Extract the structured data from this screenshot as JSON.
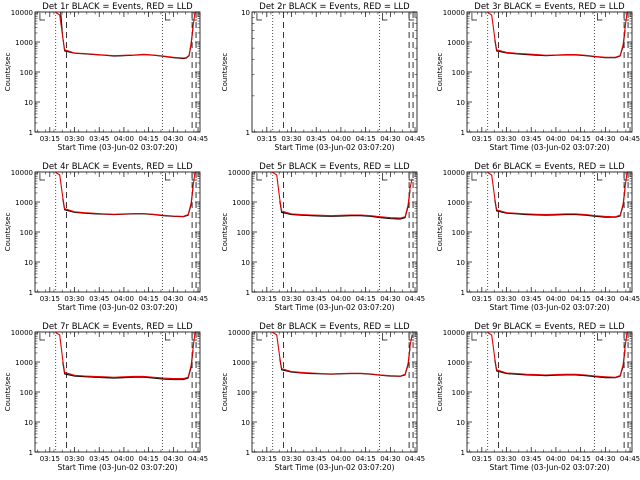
{
  "chart_data": [
    {
      "type": "line",
      "title": "Det 1r BLACK = Events, RED = LLD",
      "xlabel": "Start Time (03-Jun-02 03:07:20)",
      "ylabel": "Counts/sec",
      "yscale": "log",
      "ylim": [
        1,
        10000
      ],
      "xlim": [
        3.1,
        4.77
      ],
      "ytick_labels": [
        "1",
        "10",
        "100",
        "1000",
        "10000"
      ],
      "xtick_labels": [
        "03:15",
        "03:30",
        "03:45",
        "04:00",
        "04:15",
        "04:30",
        "04:45"
      ],
      "series": [
        {
          "color": "#000000",
          "x": [
            3.36,
            3.38,
            3.4,
            3.5,
            3.6,
            3.7,
            3.8,
            3.9,
            4.0,
            4.1,
            4.2,
            4.3,
            4.4,
            4.5,
            4.55,
            4.6,
            4.63,
            4.66,
            4.68,
            4.7
          ],
          "y": [
            10000,
            1500,
            500,
            420,
            400,
            380,
            360,
            340,
            350,
            360,
            380,
            360,
            330,
            300,
            290,
            280,
            290,
            350,
            800,
            3000
          ]
        },
        {
          "color": "#e00000",
          "x": [
            3.3,
            3.35,
            3.38,
            3.4,
            3.5,
            3.6,
            3.7,
            3.8,
            3.9,
            4.0,
            4.1,
            4.2,
            4.3,
            4.4,
            4.5,
            4.55,
            4.6,
            4.63,
            4.66,
            4.68,
            4.7,
            4.72
          ],
          "y": [
            10000,
            8000,
            1500,
            550,
            430,
            410,
            390,
            370,
            350,
            360,
            370,
            390,
            370,
            340,
            310,
            300,
            290,
            300,
            360,
            900,
            3500,
            10000
          ]
        }
      ],
      "markers": {
        "dotted": [
          3.31,
          4.39
        ],
        "dashed": [
          3.42,
          4.69,
          4.73
        ],
        "L_labels": [
          3.15,
          4.42,
          4.69
        ]
      }
    },
    {
      "type": "line",
      "title": "Det 2r BLACK = Events, RED = LLD",
      "xlabel": "Start Time (03-Jun-02 03:07:20)",
      "ylabel": "Counts/sec",
      "yscale": "log",
      "ylim": [
        1,
        10
      ],
      "xlim": [
        3.1,
        4.77
      ],
      "ytick_labels": [
        "1",
        "10"
      ],
      "xtick_labels": [
        "03:15",
        "03:30",
        "03:45",
        "04:00",
        "04:15",
        "04:30",
        "04:45"
      ],
      "series": [],
      "markers": {
        "dotted": [
          3.31,
          4.39
        ],
        "dashed": [
          3.42,
          4.69,
          4.73
        ],
        "L_labels": [
          3.15,
          4.42,
          4.69
        ]
      }
    },
    {
      "type": "line",
      "title": "Det 3r BLACK = Events, RED = LLD",
      "xlabel": "Start Time (03-Jun-02 03:07:20)",
      "ylabel": "Counts/sec",
      "yscale": "log",
      "ylim": [
        1,
        10000
      ],
      "xlim": [
        3.1,
        4.77
      ],
      "ytick_labels": [
        "1",
        "10",
        "100",
        "1000",
        "10000"
      ],
      "xtick_labels": [
        "03:15",
        "03:30",
        "03:45",
        "04:00",
        "04:15",
        "04:30",
        "04:45"
      ],
      "series": [
        {
          "color": "#000000",
          "x": [
            3.38,
            3.4,
            3.5,
            3.6,
            3.7,
            3.8,
            3.9,
            4.0,
            4.1,
            4.2,
            4.3,
            4.4,
            4.5,
            4.6,
            4.65,
            4.68,
            4.7
          ],
          "y": [
            1200,
            500,
            430,
            400,
            380,
            360,
            350,
            360,
            370,
            370,
            350,
            320,
            300,
            300,
            340,
            700,
            2500
          ]
        },
        {
          "color": "#e00000",
          "x": [
            3.3,
            3.35,
            3.38,
            3.4,
            3.5,
            3.6,
            3.7,
            3.8,
            3.9,
            4.0,
            4.1,
            4.2,
            4.3,
            4.4,
            4.5,
            4.6,
            4.65,
            4.68,
            4.7,
            4.72
          ],
          "y": [
            10000,
            8000,
            1400,
            550,
            450,
            420,
            400,
            380,
            360,
            370,
            380,
            380,
            360,
            330,
            310,
            310,
            350,
            800,
            3000,
            10000
          ]
        }
      ],
      "markers": {
        "dotted": [
          3.31,
          4.39
        ],
        "dashed": [
          3.42,
          4.69,
          4.73
        ],
        "L_labels": [
          3.15,
          4.42,
          4.69
        ]
      }
    },
    {
      "type": "line",
      "title": "Det 4r BLACK = Events, RED = LLD",
      "xlabel": "Start Time (03-Jun-02 03:07:20)",
      "ylabel": "Counts/sec",
      "yscale": "log",
      "ylim": [
        1,
        10000
      ],
      "xlim": [
        3.1,
        4.77
      ],
      "ytick_labels": [
        "1",
        "10",
        "100",
        "1000",
        "10000"
      ],
      "xtick_labels": [
        "03:15",
        "03:30",
        "03:45",
        "04:00",
        "04:15",
        "04:30",
        "04:45"
      ],
      "series": [
        {
          "color": "#000000",
          "x": [
            3.38,
            3.4,
            3.5,
            3.6,
            3.7,
            3.8,
            3.9,
            4.0,
            4.1,
            4.2,
            4.3,
            4.4,
            4.5,
            4.6,
            4.65,
            4.68,
            4.7
          ],
          "y": [
            1300,
            550,
            450,
            420,
            400,
            390,
            380,
            390,
            400,
            400,
            380,
            350,
            330,
            320,
            360,
            800,
            3000
          ]
        },
        {
          "color": "#e00000",
          "x": [
            3.3,
            3.35,
            3.38,
            3.4,
            3.5,
            3.6,
            3.7,
            3.8,
            3.9,
            4.0,
            4.1,
            4.2,
            4.3,
            4.4,
            4.5,
            4.6,
            4.65,
            4.68,
            4.7,
            4.72
          ],
          "y": [
            10000,
            8000,
            1500,
            600,
            470,
            440,
            420,
            400,
            390,
            400,
            410,
            410,
            390,
            360,
            340,
            330,
            380,
            900,
            3500,
            10000
          ]
        }
      ],
      "markers": {
        "dotted": [
          3.31,
          4.39
        ],
        "dashed": [
          3.42,
          4.69,
          4.73
        ],
        "L_labels": [
          3.15,
          4.42,
          4.69
        ]
      }
    },
    {
      "type": "line",
      "title": "Det 5r BLACK = Events, RED = LLD",
      "xlabel": "Start Time (03-Jun-02 03:07:20)",
      "ylabel": "Counts/sec",
      "yscale": "log",
      "ylim": [
        1,
        10000
      ],
      "xlim": [
        3.1,
        4.77
      ],
      "ytick_labels": [
        "1",
        "10",
        "100",
        "1000",
        "10000"
      ],
      "xtick_labels": [
        "03:15",
        "03:30",
        "03:45",
        "04:00",
        "04:15",
        "04:30",
        "04:45"
      ],
      "series": [
        {
          "color": "#000000",
          "x": [
            3.38,
            3.4,
            3.5,
            3.6,
            3.7,
            3.8,
            3.9,
            4.0,
            4.1,
            4.2,
            4.3,
            4.4,
            4.5,
            4.6,
            4.65,
            4.68,
            4.7
          ],
          "y": [
            1100,
            450,
            380,
            360,
            350,
            340,
            330,
            340,
            350,
            350,
            330,
            300,
            280,
            270,
            300,
            700,
            2500
          ]
        },
        {
          "color": "#e00000",
          "x": [
            3.3,
            3.35,
            3.38,
            3.4,
            3.5,
            3.6,
            3.7,
            3.8,
            3.9,
            4.0,
            4.1,
            4.2,
            4.3,
            4.4,
            4.5,
            4.6,
            4.65,
            4.68,
            4.7,
            4.72
          ],
          "y": [
            10000,
            8000,
            1300,
            500,
            400,
            380,
            370,
            360,
            350,
            360,
            370,
            370,
            350,
            320,
            300,
            290,
            320,
            800,
            3000,
            6000
          ]
        }
      ],
      "markers": {
        "dotted": [
          3.31,
          4.39
        ],
        "dashed": [
          3.42,
          4.69,
          4.73
        ],
        "L_labels": [
          3.15,
          4.42,
          4.69
        ]
      }
    },
    {
      "type": "line",
      "title": "Det 6r BLACK = Events, RED = LLD",
      "xlabel": "Start Time (03-Jun-02 03:07:20)",
      "ylabel": "Counts/sec",
      "yscale": "log",
      "ylim": [
        1,
        10000
      ],
      "xlim": [
        3.1,
        4.77
      ],
      "ytick_labels": [
        "1",
        "10",
        "100",
        "1000",
        "10000"
      ],
      "xtick_labels": [
        "03:15",
        "03:30",
        "03:45",
        "04:00",
        "04:15",
        "04:30",
        "04:45"
      ],
      "series": [
        {
          "color": "#000000",
          "x": [
            3.38,
            3.4,
            3.5,
            3.6,
            3.7,
            3.8,
            3.9,
            4.0,
            4.1,
            4.2,
            4.3,
            4.4,
            4.5,
            4.6,
            4.65,
            4.68,
            4.7
          ],
          "y": [
            1200,
            500,
            420,
            400,
            380,
            370,
            360,
            370,
            380,
            380,
            360,
            330,
            310,
            310,
            340,
            750,
            2800
          ]
        },
        {
          "color": "#e00000",
          "x": [
            3.3,
            3.35,
            3.38,
            3.4,
            3.5,
            3.6,
            3.7,
            3.8,
            3.9,
            4.0,
            4.1,
            4.2,
            4.3,
            4.4,
            4.5,
            4.6,
            4.65,
            4.68,
            4.7,
            4.72
          ],
          "y": [
            10000,
            8000,
            1400,
            550,
            440,
            420,
            400,
            390,
            380,
            390,
            400,
            400,
            380,
            350,
            330,
            320,
            360,
            850,
            3200,
            10000
          ]
        }
      ],
      "markers": {
        "dotted": [
          3.31,
          4.39
        ],
        "dashed": [
          3.42,
          4.69,
          4.73
        ],
        "L_labels": [
          3.15,
          4.42,
          4.69
        ]
      }
    },
    {
      "type": "line",
      "title": "Det 7r BLACK = Events, RED = LLD",
      "xlabel": "Start Time (03-Jun-02 03:07:20)",
      "ylabel": "Counts/sec",
      "yscale": "log",
      "ylim": [
        1,
        10000
      ],
      "xlim": [
        3.1,
        4.77
      ],
      "ytick_labels": [
        "1",
        "10",
        "100",
        "1000",
        "10000"
      ],
      "xtick_labels": [
        "03:15",
        "03:30",
        "03:45",
        "04:00",
        "04:15",
        "04:30",
        "04:45"
      ],
      "series": [
        {
          "color": "#000000",
          "x": [
            3.38,
            3.4,
            3.5,
            3.6,
            3.7,
            3.8,
            3.9,
            4.0,
            4.1,
            4.2,
            4.3,
            4.4,
            4.5,
            4.6,
            4.65,
            4.68,
            4.7
          ],
          "y": [
            1000,
            400,
            340,
            320,
            310,
            300,
            290,
            300,
            310,
            310,
            290,
            270,
            260,
            260,
            290,
            650,
            2500
          ]
        },
        {
          "color": "#e00000",
          "x": [
            3.3,
            3.35,
            3.38,
            3.4,
            3.5,
            3.6,
            3.7,
            3.8,
            3.9,
            4.0,
            4.1,
            4.2,
            4.3,
            4.4,
            4.5,
            4.6,
            4.65,
            4.68,
            4.7,
            4.72
          ],
          "y": [
            10000,
            8000,
            1200,
            450,
            360,
            340,
            330,
            320,
            310,
            320,
            330,
            330,
            310,
            290,
            280,
            280,
            310,
            750,
            3000,
            10000
          ]
        }
      ],
      "markers": {
        "dotted": [
          3.31,
          4.39
        ],
        "dashed": [
          3.42,
          4.69,
          4.73
        ],
        "L_labels": [
          3.15,
          4.42,
          4.69
        ]
      }
    },
    {
      "type": "line",
      "title": "Det 8r BLACK = Events, RED = LLD",
      "xlabel": "Start Time (03-Jun-02 03:07:20)",
      "ylabel": "Counts/sec",
      "yscale": "log",
      "ylim": [
        1,
        10000
      ],
      "xlim": [
        3.1,
        4.77
      ],
      "ytick_labels": [
        "1",
        "10",
        "100",
        "1000",
        "10000"
      ],
      "xtick_labels": [
        "03:15",
        "03:30",
        "03:45",
        "04:00",
        "04:15",
        "04:30",
        "04:45"
      ],
      "series": [
        {
          "color": "#000000",
          "x": [
            3.38,
            3.4,
            3.5,
            3.6,
            3.7,
            3.8,
            3.9,
            4.0,
            4.1,
            4.2,
            4.3,
            4.4,
            4.5,
            4.6,
            4.65,
            4.68,
            4.7
          ],
          "y": [
            1300,
            550,
            460,
            430,
            410,
            400,
            390,
            400,
            410,
            410,
            390,
            360,
            340,
            330,
            370,
            800,
            3000
          ]
        },
        {
          "color": "#e00000",
          "x": [
            3.3,
            3.35,
            3.38,
            3.4,
            3.5,
            3.6,
            3.7,
            3.8,
            3.9,
            4.0,
            4.1,
            4.2,
            4.3,
            4.4,
            4.5,
            4.6,
            4.65,
            4.68,
            4.7,
            4.72
          ],
          "y": [
            10000,
            8000,
            1500,
            600,
            480,
            450,
            430,
            410,
            400,
            410,
            420,
            420,
            400,
            370,
            350,
            340,
            390,
            900,
            3500,
            8000
          ]
        }
      ],
      "markers": {
        "dotted": [
          3.31,
          4.39
        ],
        "dashed": [
          3.42,
          4.69,
          4.73
        ],
        "L_labels": [
          3.15,
          4.42,
          4.69
        ]
      }
    },
    {
      "type": "line",
      "title": "Det 9r BLACK = Events, RED = LLD",
      "xlabel": "Start Time (03-Jun-02 03:07:20)",
      "ylabel": "Counts/sec",
      "yscale": "log",
      "ylim": [
        1,
        10000
      ],
      "xlim": [
        3.1,
        4.77
      ],
      "ytick_labels": [
        "1",
        "10",
        "100",
        "1000",
        "10000"
      ],
      "xtick_labels": [
        "03:15",
        "03:30",
        "03:45",
        "04:00",
        "04:15",
        "04:30",
        "04:45"
      ],
      "series": [
        {
          "color": "#000000",
          "x": [
            3.38,
            3.4,
            3.5,
            3.6,
            3.7,
            3.8,
            3.9,
            4.0,
            4.1,
            4.2,
            4.3,
            4.4,
            4.5,
            4.6,
            4.65,
            4.68,
            4.7
          ],
          "y": [
            1200,
            500,
            410,
            390,
            370,
            360,
            350,
            360,
            370,
            370,
            350,
            320,
            300,
            300,
            330,
            700,
            2600
          ]
        },
        {
          "color": "#e00000",
          "x": [
            3.3,
            3.35,
            3.38,
            3.4,
            3.5,
            3.6,
            3.7,
            3.8,
            3.9,
            4.0,
            4.1,
            4.2,
            4.3,
            4.4,
            4.5,
            4.6,
            4.65,
            4.68,
            4.7,
            4.72
          ],
          "y": [
            10000,
            8000,
            1400,
            550,
            430,
            410,
            390,
            380,
            370,
            380,
            390,
            390,
            370,
            340,
            320,
            310,
            350,
            800,
            3200,
            10000
          ]
        }
      ],
      "markers": {
        "dotted": [
          3.31,
          4.39
        ],
        "dashed": [
          3.42,
          4.69,
          4.73
        ],
        "L_labels": [
          3.15,
          4.42,
          4.69
        ]
      }
    }
  ]
}
